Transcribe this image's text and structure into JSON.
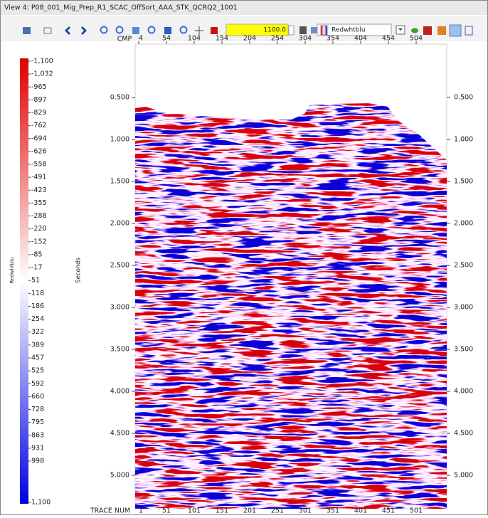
{
  "window": {
    "title": "View 4: P08_001_Mig_Prep_R1_SCAC_OffSort_AAA_STK_QCRQ2_1001"
  },
  "toolbar": {
    "value": "1100.0",
    "colormap": "Redwhtblu"
  },
  "colorbar": {
    "name": "Redwhtblu",
    "labels": [
      "-1,100",
      "-1,032",
      "-965",
      "-897",
      "-829",
      "-762",
      "-694",
      "-626",
      "-558",
      "-491",
      "-423",
      "-355",
      "-288",
      "-220",
      "-152",
      "-85",
      "-17",
      "51",
      "118",
      "186",
      "254",
      "322",
      "389",
      "457",
      "525",
      "592",
      "660",
      "728",
      "795",
      "863",
      "931",
      "998",
      "1,100"
    ]
  },
  "plot": {
    "y_axis_label": "Seconds",
    "top_axis_label": "CMP",
    "top_ticks": [
      "4",
      "54",
      "104",
      "154",
      "204",
      "254",
      "304",
      "354",
      "404",
      "454",
      "504"
    ],
    "bottom_axis_label": "TRACE NUM",
    "bottom_ticks": [
      "1",
      "51",
      "101",
      "151",
      "201",
      "251",
      "301",
      "351",
      "401",
      "451",
      "501"
    ],
    "time_ticks": [
      "0.500",
      "1.000",
      "1.500",
      "2.000",
      "2.500",
      "3.000",
      "3.500",
      "4.000",
      "4.500",
      "5.000"
    ]
  }
}
